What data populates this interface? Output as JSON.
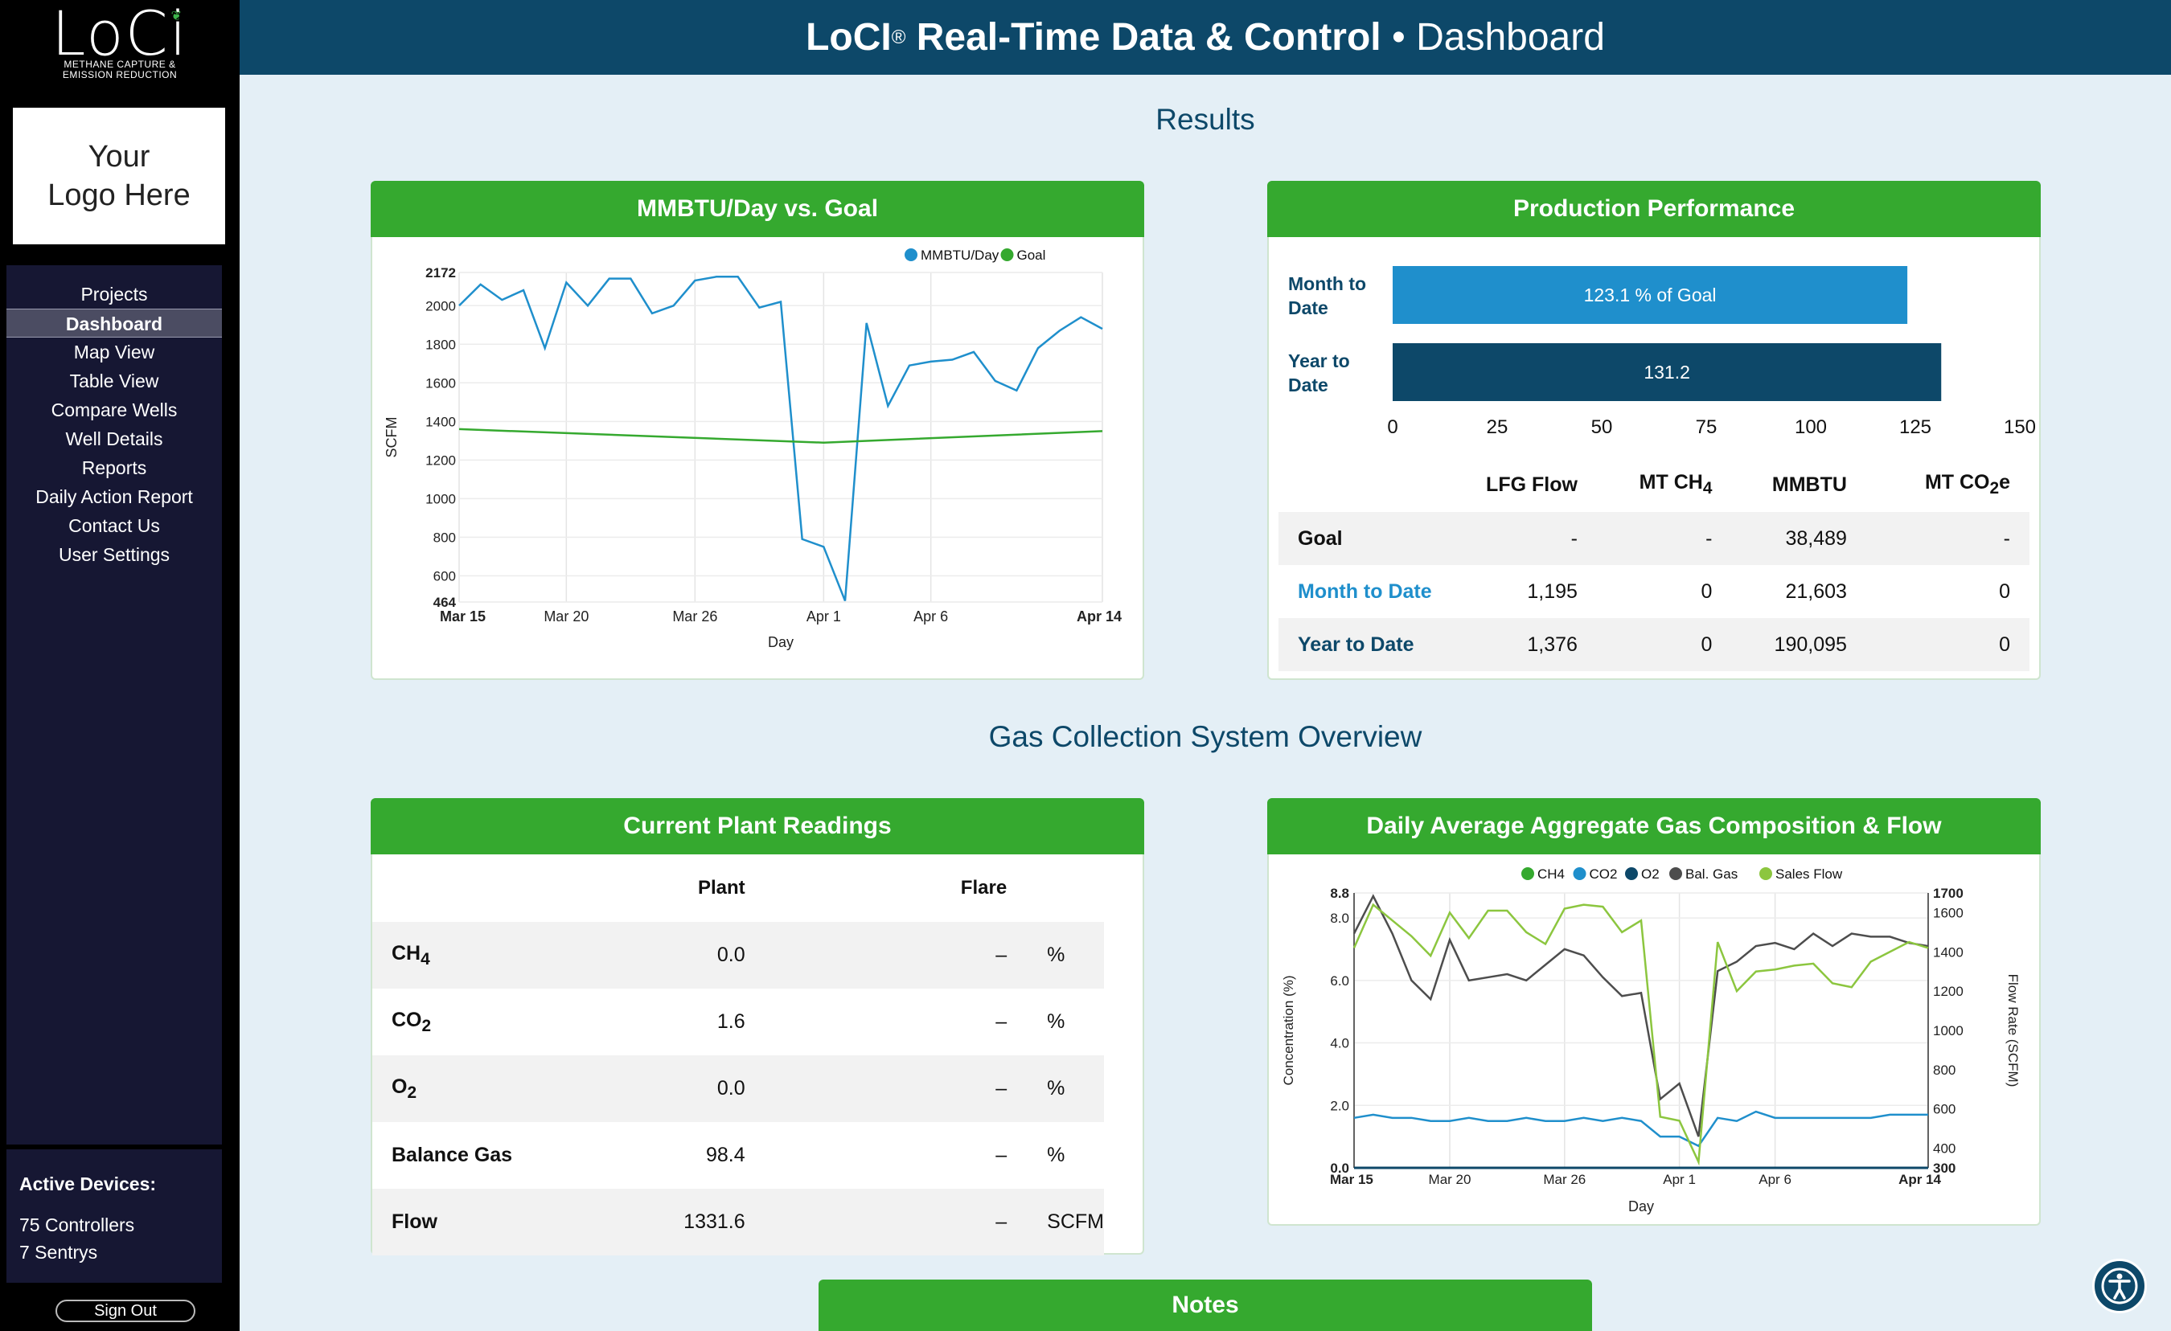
{
  "brand": {
    "name": "LoCi",
    "tagline_line1": "METHANE CAPTURE &",
    "tagline_line2": "EMISSION REDUCTION"
  },
  "customer_logo": {
    "line1": "Your",
    "line2": "Logo Here"
  },
  "nav": {
    "items": [
      "Projects",
      "Dashboard",
      "Map View",
      "Table View",
      "Compare Wells",
      "Well Details",
      "Reports",
      "Daily Action Report",
      "Contact Us",
      "User Settings"
    ],
    "active": "Dashboard"
  },
  "devices": {
    "title": "Active Devices:",
    "controllers": "75 Controllers",
    "sentrys": "7 Sentrys"
  },
  "sign_out": "Sign Out",
  "header": {
    "brand": "LoCI",
    "reg": "®",
    "title": "Real-Time Data & Control",
    "sep": "•",
    "page": "Dashboard"
  },
  "sections": {
    "results": "Results",
    "gcs": "Gas Collection System Overview"
  },
  "mmbtu_chart": {
    "title": "MMBTU/Day vs. Goal",
    "chart_data": {
      "type": "line",
      "xlabel": "Day",
      "ylabel": "SCFM",
      "ylim": [
        464,
        2172
      ],
      "y_ticks": [
        "2172",
        "2000",
        "1800",
        "1600",
        "1400",
        "1200",
        "1000",
        "800",
        "600",
        "464"
      ],
      "x_ticks": [
        "Mar 15",
        "Mar 20",
        "Mar 26",
        "Apr 1",
        "Apr 6",
        "Apr 14"
      ],
      "legend": "top-right",
      "grid": true,
      "series": [
        {
          "name": "MMBTU/Day",
          "color": "#1f8fcc",
          "x": [
            "Mar 15",
            "Mar 16",
            "Mar 17",
            "Mar 18",
            "Mar 19",
            "Mar 20",
            "Mar 21",
            "Mar 22",
            "Mar 23",
            "Mar 24",
            "Mar 25",
            "Mar 26",
            "Mar 27",
            "Mar 28",
            "Mar 29",
            "Mar 30",
            "Mar 31",
            "Apr 1",
            "Apr 2",
            "Apr 3",
            "Apr 4",
            "Apr 5",
            "Apr 6",
            "Apr 7",
            "Apr 8",
            "Apr 9",
            "Apr 10",
            "Apr 11",
            "Apr 12",
            "Apr 13",
            "Apr 14"
          ],
          "values": [
            2000,
            2110,
            2030,
            2080,
            1780,
            2120,
            2000,
            2140,
            2140,
            1960,
            2000,
            2130,
            2150,
            2150,
            1990,
            2020,
            790,
            750,
            470,
            1910,
            1480,
            1690,
            1710,
            1720,
            1760,
            1610,
            1560,
            1780,
            1870,
            1940,
            1880
          ]
        },
        {
          "name": "Goal",
          "color": "#35a92f",
          "x": [
            "Mar 15",
            "Apr 1",
            "Apr 14"
          ],
          "values": [
            1360,
            1290,
            1350
          ]
        }
      ]
    }
  },
  "production": {
    "title": "Production Performance",
    "chart_data": {
      "type": "bar",
      "orientation": "horizontal",
      "categories": [
        "Month to Date",
        "Year to Date"
      ],
      "values": [
        123.1,
        131.2
      ],
      "labels": [
        "123.1 % of Goal",
        "131.2"
      ],
      "colors": [
        "#1f8fcc",
        "#0d4869"
      ],
      "xlim": [
        0,
        150
      ],
      "x_ticks": [
        "0",
        "25",
        "50",
        "75",
        "100",
        "125",
        "150"
      ]
    },
    "cat_line1": [
      "Month to",
      "Year to"
    ],
    "cat_line2": [
      "Date",
      "Date"
    ],
    "table": {
      "headers": [
        "LFG Flow",
        "MT CH",
        "MMBTU",
        "MT CO"
      ],
      "header_subs": [
        "",
        "4",
        "",
        "2"
      ],
      "header_suffix": [
        "",
        "",
        "",
        "e"
      ],
      "rows": [
        {
          "label": "Goal",
          "values": [
            "-",
            "-",
            "38,489",
            "-"
          ]
        },
        {
          "label": "Month to Date",
          "values": [
            "1,195",
            "0",
            "21,603",
            "0"
          ]
        },
        {
          "label": "Year to Date",
          "values": [
            "1,376",
            "0",
            "190,095",
            "0"
          ]
        }
      ]
    }
  },
  "readings": {
    "title": "Current Plant Readings",
    "headers": [
      "Plant",
      "Flare"
    ],
    "rows": [
      {
        "label": "CH",
        "sub": "4",
        "plant": "0.0",
        "flare": "–",
        "unit": "%"
      },
      {
        "label": "CO",
        "sub": "2",
        "plant": "1.6",
        "flare": "–",
        "unit": "%"
      },
      {
        "label": "O",
        "sub": "2",
        "plant": "0.0",
        "flare": "–",
        "unit": "%"
      },
      {
        "label": "Balance Gas",
        "sub": "",
        "plant": "98.4",
        "flare": "–",
        "unit": "%"
      },
      {
        "label": "Flow",
        "sub": "",
        "plant": "1331.6",
        "flare": "–",
        "unit": "SCFM"
      }
    ]
  },
  "gas_comp": {
    "title": "Daily Average Aggregate Gas Composition & Flow",
    "chart_data": {
      "type": "line",
      "xlabel": "Day",
      "ylabel": "Concentration (%)",
      "y2label": "Flow Rate (SCFM)",
      "ylim": [
        0,
        8.8
      ],
      "y2lim": [
        300,
        1700
      ],
      "y_ticks": [
        "8.8",
        "8.0",
        "6.0",
        "4.0",
        "2.0",
        "0.0"
      ],
      "y2_ticks": [
        "1700",
        "1600",
        "1400",
        "1200",
        "1000",
        "800",
        "600",
        "400",
        "300"
      ],
      "x_ticks": [
        "Mar 15",
        "Mar 20",
        "Mar 26",
        "Apr 1",
        "Apr 6",
        "Apr 14"
      ],
      "legend": "top-center",
      "grid": true,
      "series": [
        {
          "name": "CH4",
          "color": "#35a92f",
          "axis": "left",
          "values": []
        },
        {
          "name": "CO2",
          "color": "#1f8fcc",
          "axis": "left",
          "values": [
            1.6,
            1.7,
            1.6,
            1.6,
            1.5,
            1.5,
            1.6,
            1.5,
            1.5,
            1.6,
            1.5,
            1.5,
            1.6,
            1.5,
            1.6,
            1.5,
            1.0,
            1.0,
            0.7,
            1.6,
            1.5,
            1.8,
            1.6,
            1.6,
            1.6,
            1.6,
            1.6,
            1.6,
            1.7,
            1.7,
            1.7
          ]
        },
        {
          "name": "O2",
          "color": "#0d4869",
          "axis": "left",
          "values": []
        },
        {
          "name": "Bal. Gas",
          "color": "#4d4d4d",
          "axis": "left",
          "values": [
            7.5,
            8.7,
            7.5,
            6.0,
            5.4,
            7.3,
            6.0,
            6.1,
            6.2,
            6.0,
            6.5,
            7.0,
            6.8,
            6.1,
            5.5,
            5.6,
            2.2,
            2.7,
            1.0,
            6.3,
            6.6,
            7.1,
            7.2,
            7.0,
            7.5,
            7.1,
            7.5,
            7.4,
            7.4,
            7.2,
            7.1
          ]
        },
        {
          "name": "Sales Flow",
          "color": "#8cc63f",
          "axis": "right",
          "values": [
            1420,
            1640,
            1560,
            1480,
            1380,
            1600,
            1470,
            1610,
            1610,
            1500,
            1440,
            1620,
            1640,
            1630,
            1500,
            1560,
            560,
            540,
            330,
            1450,
            1200,
            1300,
            1310,
            1330,
            1340,
            1240,
            1220,
            1350,
            1400,
            1450,
            1420
          ]
        }
      ]
    }
  },
  "notes": {
    "title": "Notes"
  }
}
